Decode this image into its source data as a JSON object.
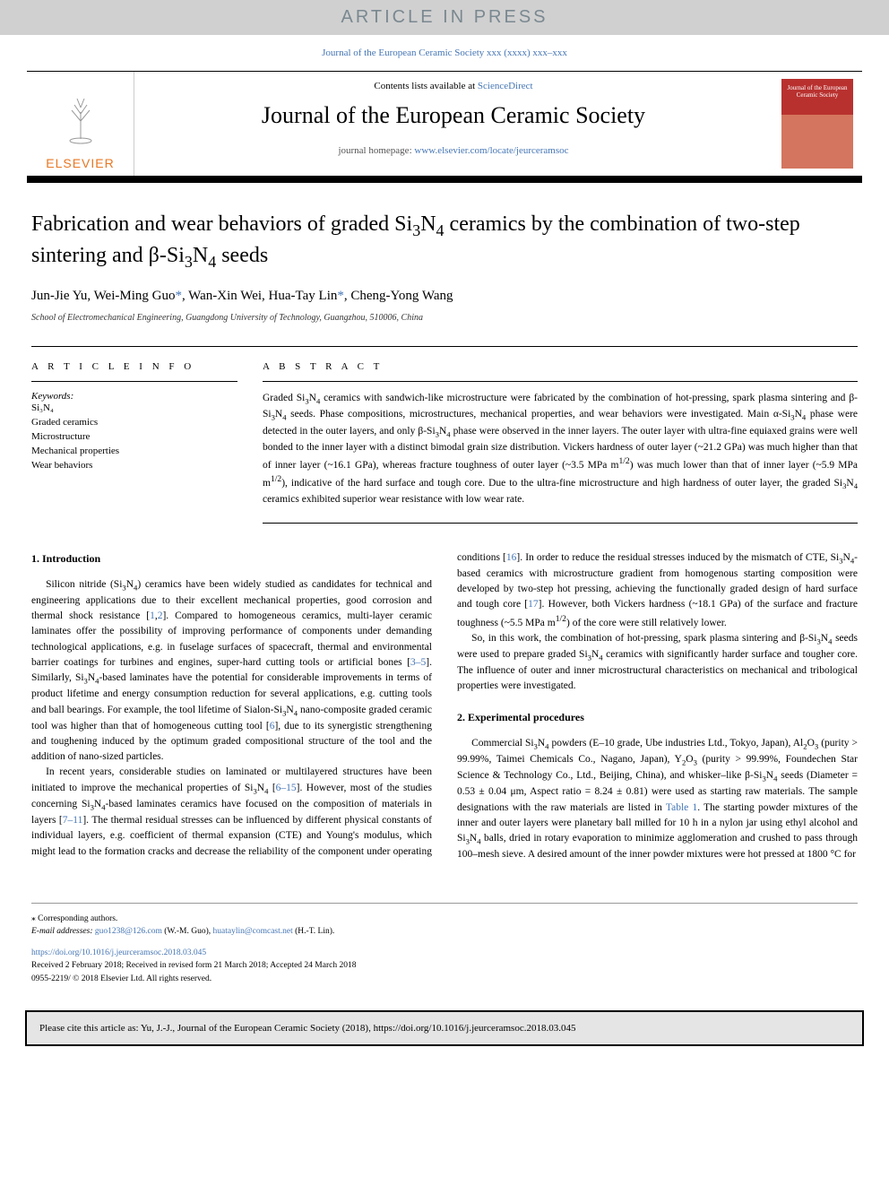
{
  "banner": {
    "text": "ARTICLE IN PRESS"
  },
  "journal_ref": "Journal of the European Ceramic Society xxx (xxxx) xxx–xxx",
  "header": {
    "contents_prefix": "Contents lists available at ",
    "contents_link": "ScienceDirect",
    "journal_title": "Journal of the European Ceramic Society",
    "homepage_prefix": "journal homepage: ",
    "homepage_link": "www.elsevier.com/locate/jeurceramsoc",
    "publisher": "ELSEVIER",
    "cover_text": "Journal of the European Ceramic Society"
  },
  "article": {
    "title_html": "Fabrication and wear behaviors of graded Si<sub>3</sub>N<sub>4</sub> ceramics by the combination of two-step sintering and β-Si<sub>3</sub>N<sub>4</sub> seeds",
    "authors_html": "Jun-Jie Yu, Wei-Ming Guo<span class=\"corr\">*</span>, Wan-Xin Wei, Hua-Tay Lin<span class=\"corr\">*</span>, Cheng-Yong Wang",
    "affiliation": "School of Electromechanical Engineering, Guangdong University of Technology, Guangzhou, 510006, China"
  },
  "article_info": {
    "heading": "A R T I C L E  I N F O",
    "keywords_label": "Keywords:",
    "keywords": [
      "Si₃N₄",
      "Graded ceramics",
      "Microstructure",
      "Mechanical properties",
      "Wear behaviors"
    ]
  },
  "abstract": {
    "heading": "A B S T R A C T",
    "text_html": "Graded Si<sub>3</sub>N<sub>4</sub> ceramics with sandwich-like microstructure were fabricated by the combination of hot-pressing, spark plasma sintering and β-Si<sub>3</sub>N<sub>4</sub> seeds. Phase compositions, microstructures, mechanical properties, and wear behaviors were investigated. Main α-Si<sub>3</sub>N<sub>4</sub> phase were detected in the outer layers, and only β-Si<sub>3</sub>N<sub>4</sub> phase were observed in the inner layers. The outer layer with ultra-fine equiaxed grains were well bonded to the inner layer with a distinct bimodal grain size distribution. Vickers hardness of outer layer (~21.2 GPa) was much higher than that of inner layer (~16.1 GPa), whereas fracture toughness of outer layer (~3.5 MPa m<sup>1/2</sup>) was much lower than that of inner layer (~5.9 MPa m<sup>1/2</sup>), indicative of the hard surface and tough core. Due to the ultra-fine microstructure and high hardness of outer layer, the graded Si<sub>3</sub>N<sub>4</sub> ceramics exhibited superior wear resistance with low wear rate."
  },
  "sections": {
    "intro_heading": "1. Introduction",
    "intro_p1_html": "Silicon nitride (Si<sub>3</sub>N<sub>4</sub>) ceramics have been widely studied as candidates for technical and engineering applications due to their excellent mechanical properties, good corrosion and thermal shock resistance [<a class=\"ref\">1</a>,<a class=\"ref\">2</a>]. Compared to homogeneous ceramics, multi-layer ceramic laminates offer the possibility of improving performance of components under demanding technological applications, e.g. in fuselage surfaces of spacecraft, thermal and environmental barrier coatings for turbines and engines, super-hard cutting tools or artificial bones [<a class=\"ref\">3–5</a>]. Similarly, Si<sub>3</sub>N<sub>4</sub>-based laminates have the potential for considerable improvements in terms of product lifetime and energy consumption reduction for several applications, e.g. cutting tools and ball bearings. For example, the tool lifetime of Sialon-Si<sub>3</sub>N<sub>4</sub> nano-composite graded ceramic tool was higher than that of homogeneous cutting tool [<a class=\"ref\">6</a>], due to its synergistic strengthening and toughening induced by the optimum graded compositional structure of the tool and the addition of nano-sized particles.",
    "intro_p2_html": "In recent years, considerable studies on laminated or multilayered structures have been initiated to improve the mechanical properties of Si<sub>3</sub>N<sub>4</sub> [<a class=\"ref\">6–15</a>]. However, most of the studies concerning Si<sub>3</sub>N<sub>4</sub>-based laminates ceramics have focused on the composition of materials in layers [<a class=\"ref\">7–11</a>]. The thermal residual stresses can be influenced by different physical constants of individual layers, e.g. coefficient of thermal expansion (CTE) and Young's modulus, which might lead to the formation cracks and decrease the reliability of the component under operating conditions [<a class=\"ref\">16</a>]. In order to reduce the residual stresses induced by the mismatch of CTE, Si<sub>3</sub>N<sub>4</sub>-based ceramics with microstructure gradient from homogenous starting composition were developed by two-step hot pressing, achieving the functionally graded design of hard surface and tough core [<a class=\"ref\">17</a>]. However, both Vickers hardness (~18.1 GPa) of the surface and fracture toughness (~5.5 MPa m<sup>1/2</sup>) of the core were still relatively lower.",
    "intro_p3_html": "So, in this work, the combination of hot-pressing, spark plasma sintering and β-Si<sub>3</sub>N<sub>4</sub> seeds were used to prepare graded Si<sub>3</sub>N<sub>4</sub> ceramics with significantly harder surface and tougher core. The influence of outer and inner microstructural characteristics on mechanical and tribological properties were investigated.",
    "exp_heading": "2. Experimental procedures",
    "exp_p1_html": "Commercial Si<sub>3</sub>N<sub>4</sub> powders (E–10 grade, Ube industries Ltd., Tokyo, Japan), Al<sub>2</sub>O<sub>3</sub> (purity &gt; 99.99%, Taimei Chemicals Co., Nagano, Japan), Y<sub>2</sub>O<sub>3</sub> (purity &gt; 99.99%, Foundechen Star Science &amp; Technology Co., Ltd., Beijing, China), and whisker–like β-Si<sub>3</sub>N<sub>4</sub> seeds (Diameter = 0.53 ± 0.04 μm, Aspect ratio = 8.24 ± 0.81) were used as starting raw materials. The sample designations with the raw materials are listed in <a class=\"ref\">Table 1</a>. The starting powder mixtures of the inner and outer layers were planetary ball milled for 10 h in a nylon jar using ethyl alcohol and Si<sub>3</sub>N<sub>4</sub> balls, dried in rotary evaporation to minimize agglomeration and crushed to pass through 100–mesh sieve. A desired amount of the inner powder mixtures were hot pressed at 1800 °C for"
  },
  "footer": {
    "corr_label": "⁎ Corresponding authors.",
    "email_label": "E-mail addresses: ",
    "email1": "guo1238@126.com",
    "email1_name": " (W.-M. Guo), ",
    "email2": "huataylin@comcast.net",
    "email2_name": " (H.-T. Lin).",
    "doi": "https://doi.org/10.1016/j.jeurceramsoc.2018.03.045",
    "received": "Received 2 February 2018; Received in revised form 21 March 2018; Accepted 24 March 2018",
    "issn": "0955-2219/ © 2018 Elsevier Ltd. All rights reserved."
  },
  "cite": "Please cite this article as: Yu, J.-J., Journal of the European Ceramic Society (2018), https://doi.org/10.1016/j.jeurceramsoc.2018.03.045",
  "colors": {
    "link": "#4576b5",
    "banner_bg": "#d0d0d0",
    "banner_text": "#7a8890",
    "elsevier": "#e87722",
    "cite_bg": "#e5e5e5"
  }
}
